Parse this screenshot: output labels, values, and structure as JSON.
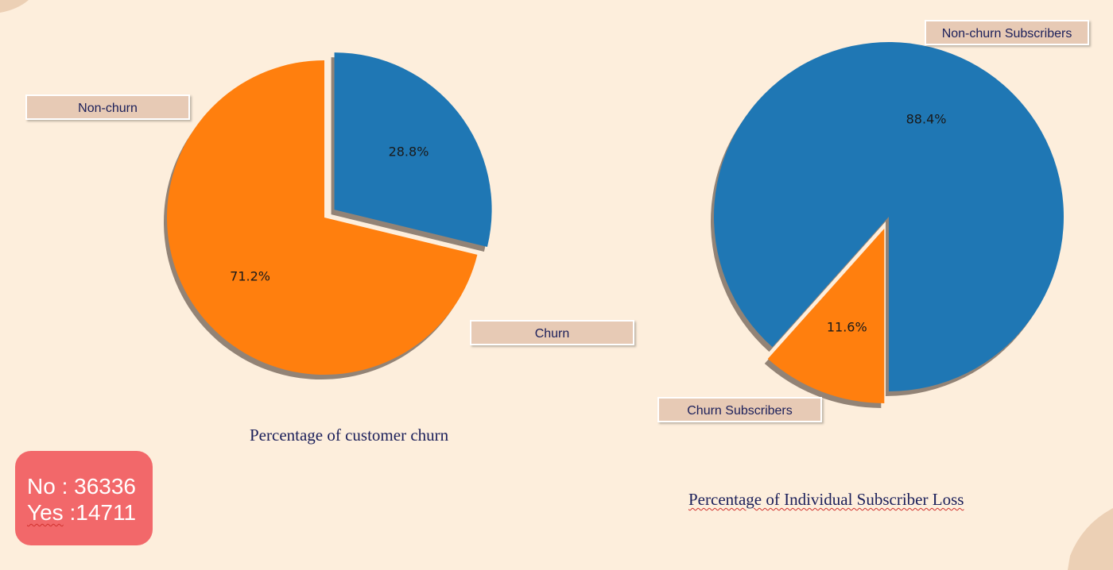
{
  "chart_data": [
    {
      "type": "pie",
      "title": "Percentage of customer churn",
      "slices": [
        {
          "label": "Non-churn",
          "value": 71.2,
          "pct_label": "71.2%",
          "color": "#ff7f0e",
          "exploded": false
        },
        {
          "label": "Churn",
          "value": 28.8,
          "pct_label": "28.8%",
          "color": "#1f77b4",
          "exploded": true
        }
      ],
      "shadow": true,
      "legend": "none",
      "label_style": "boxed callouts"
    },
    {
      "type": "pie",
      "title": "Percentage of Individual Subscriber Loss",
      "slices": [
        {
          "label": "Non-churn Subscribers",
          "value": 88.4,
          "pct_label": "88.4%",
          "color": "#1f77b4",
          "exploded": false
        },
        {
          "label": "Churn Subscribers",
          "value": 11.6,
          "pct_label": "11.6%",
          "color": "#ff7f0e",
          "exploded": true
        }
      ],
      "shadow": true,
      "legend": "none",
      "label_style": "boxed callouts"
    }
  ],
  "counts": {
    "no_label": "No : 36336",
    "yes_word": "Yes",
    "yes_rest": " :14711"
  },
  "colors": {
    "background": "#fdeedc",
    "decor": "#ecd0b5",
    "label_box": "#e7cab5",
    "count_box": "#f2686a",
    "caption_text": "#1b1f5a"
  }
}
